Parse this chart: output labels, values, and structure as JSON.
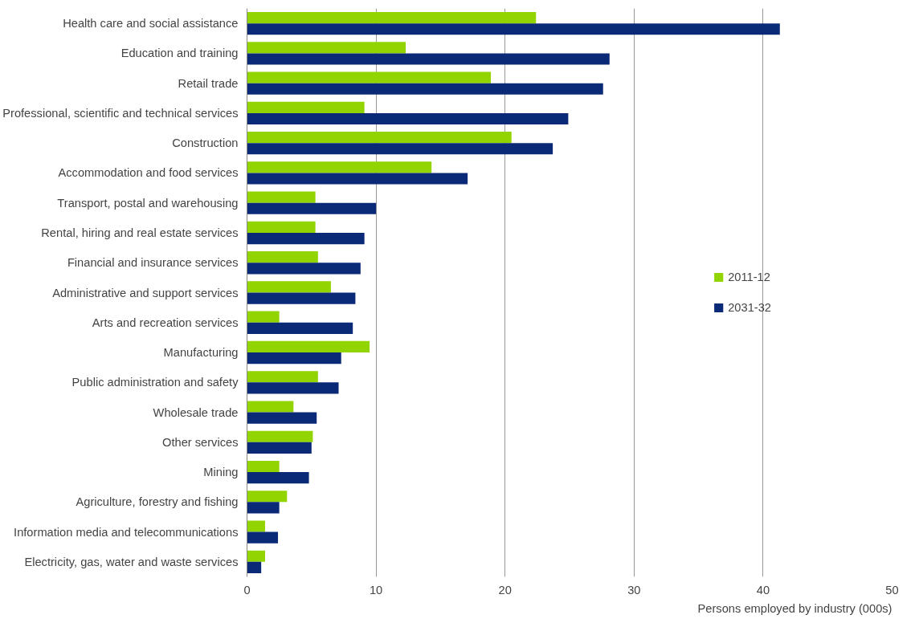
{
  "chart_data": {
    "type": "bar",
    "orientation": "horizontal",
    "xlabel": "Persons employed by industry (000s)",
    "categories": [
      "Health care and social assistance",
      "Education and training",
      "Retail trade",
      "Professional, scientific and technical services",
      "Construction",
      "Accommodation and food services",
      "Transport, postal and warehousing",
      "Rental, hiring and real estate services",
      "Financial and insurance services",
      "Administrative and support services",
      "Arts and recreation services",
      "Manufacturing",
      "Public administration and safety",
      "Wholesale trade",
      "Other services",
      "Mining",
      "Agriculture, forestry and fishing",
      "Information media and telecommunications",
      "Electricity, gas, water and waste services"
    ],
    "series": [
      {
        "name": "2011-12",
        "color": "#92d400",
        "values": [
          22.4,
          12.3,
          18.9,
          9.1,
          20.5,
          14.3,
          5.3,
          5.3,
          5.5,
          6.5,
          2.5,
          9.5,
          5.5,
          3.6,
          5.1,
          2.5,
          3.1,
          1.4,
          1.4
        ]
      },
      {
        "name": "2031-32",
        "color": "#0a2a78",
        "values": [
          41.3,
          28.1,
          27.6,
          24.9,
          23.7,
          17.1,
          10.0,
          9.1,
          8.8,
          8.4,
          8.2,
          7.3,
          7.1,
          5.4,
          5.0,
          4.8,
          2.5,
          2.4,
          1.1
        ]
      }
    ],
    "xlim": [
      0,
      50
    ],
    "xticks": [
      0,
      10,
      20,
      30,
      40,
      50
    ],
    "grid": "x",
    "legend": "right"
  }
}
